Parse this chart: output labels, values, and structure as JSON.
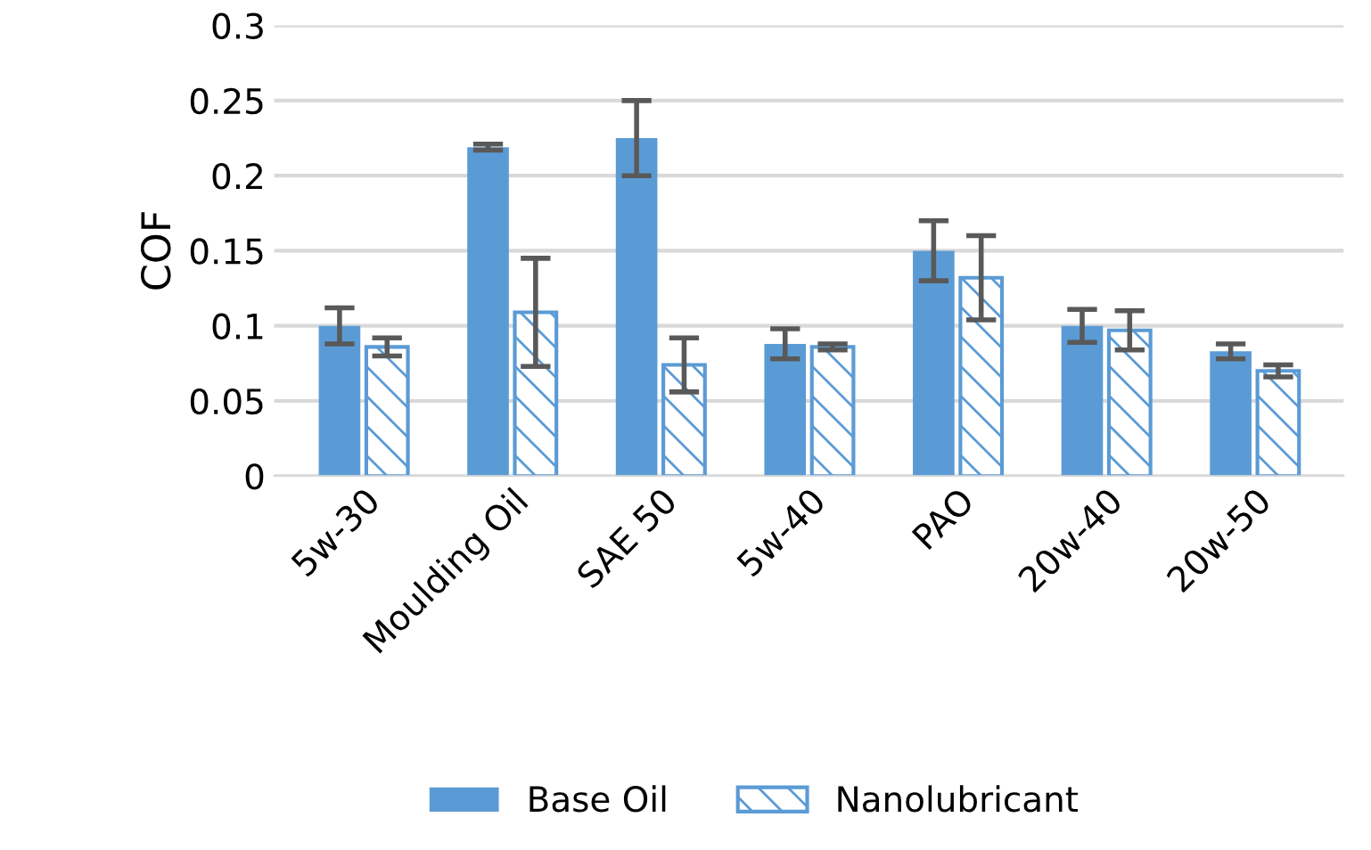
{
  "chart_data": {
    "type": "bar",
    "ylabel": "COF",
    "categories": [
      "5w-30",
      "Moulding Oil",
      "SAE 50",
      "5w-40",
      "PAO",
      "20w-40",
      "20w-50"
    ],
    "series": [
      {
        "name": "Base Oil",
        "color": "#5b9bd5",
        "values": [
          0.1,
          0.219,
          0.225,
          0.088,
          0.15,
          0.1,
          0.083
        ],
        "errors": [
          0.012,
          0.002,
          0.025,
          0.01,
          0.02,
          0.011,
          0.005
        ]
      },
      {
        "name": "Nanolubricant",
        "color": "#5b9bd5",
        "values": [
          0.086,
          0.109,
          0.074,
          0.086,
          0.132,
          0.097,
          0.07
        ],
        "errors": [
          0.006,
          0.036,
          0.018,
          0.002,
          0.028,
          0.013,
          0.004
        ]
      }
    ],
    "ylim": [
      0,
      0.3
    ],
    "yticks": [
      0,
      0.05,
      0.1,
      0.15,
      0.2,
      0.25,
      0.3
    ],
    "grid": "y",
    "legend": "bottom"
  }
}
